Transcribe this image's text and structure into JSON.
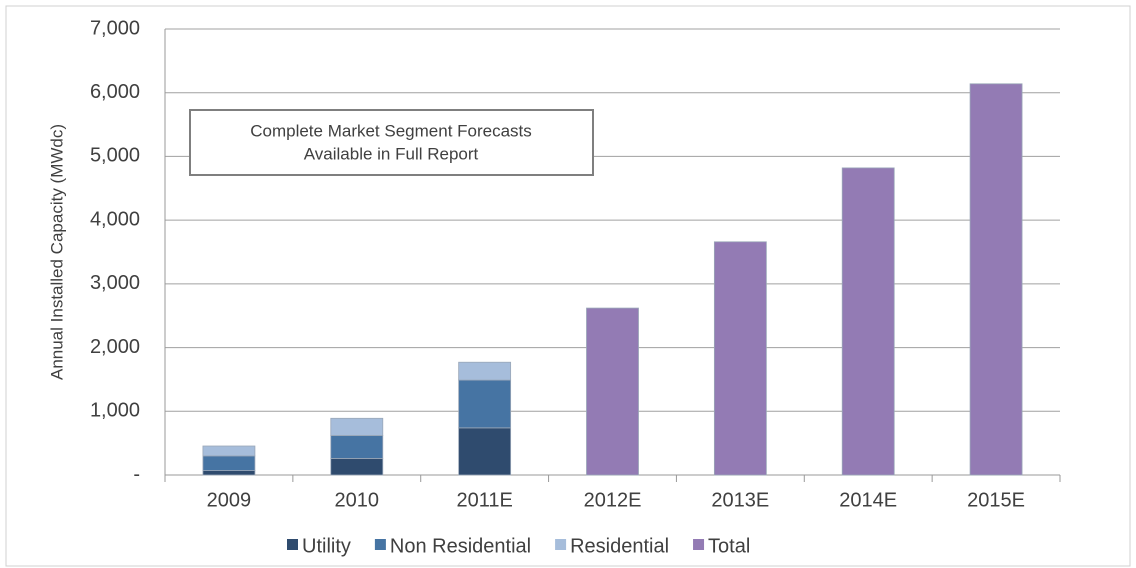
{
  "chart_data": {
    "type": "stacked_bar",
    "y_axis_label": "Annual Installed Capacity (MWdc)",
    "annotation": [
      "Complete Market Segment Forecasts",
      "Available in Full Report"
    ],
    "categories": [
      "2009",
      "2010",
      "2011E",
      "2012E",
      "2013E",
      "2014E",
      "2015E"
    ],
    "series": [
      {
        "name": "Utility",
        "color": "#2f4b6e",
        "values": [
          70,
          260,
          740,
          null,
          null,
          null,
          null
        ]
      },
      {
        "name": "Non Residential",
        "color": "#4674a3",
        "values": [
          230,
          360,
          750,
          null,
          null,
          null,
          null
        ]
      },
      {
        "name": "Residential",
        "color": "#a6bddb",
        "values": [
          155,
          270,
          280,
          null,
          null,
          null,
          null
        ]
      },
      {
        "name": "Total",
        "color": "#937bb4",
        "values": [
          null,
          null,
          null,
          2620,
          3660,
          4820,
          6140
        ]
      }
    ],
    "ylim": [
      0,
      7000
    ],
    "yticks": [
      {
        "value": 0,
        "label": "-"
      },
      {
        "value": 1000,
        "label": "1,000"
      },
      {
        "value": 2000,
        "label": "2,000"
      },
      {
        "value": 3000,
        "label": "3,000"
      },
      {
        "value": 4000,
        "label": "4,000"
      },
      {
        "value": 5000,
        "label": "5,000"
      },
      {
        "value": 6000,
        "label": "6,000"
      },
      {
        "value": 7000,
        "label": "7,000"
      }
    ],
    "grid": true,
    "legend": "bottom"
  }
}
